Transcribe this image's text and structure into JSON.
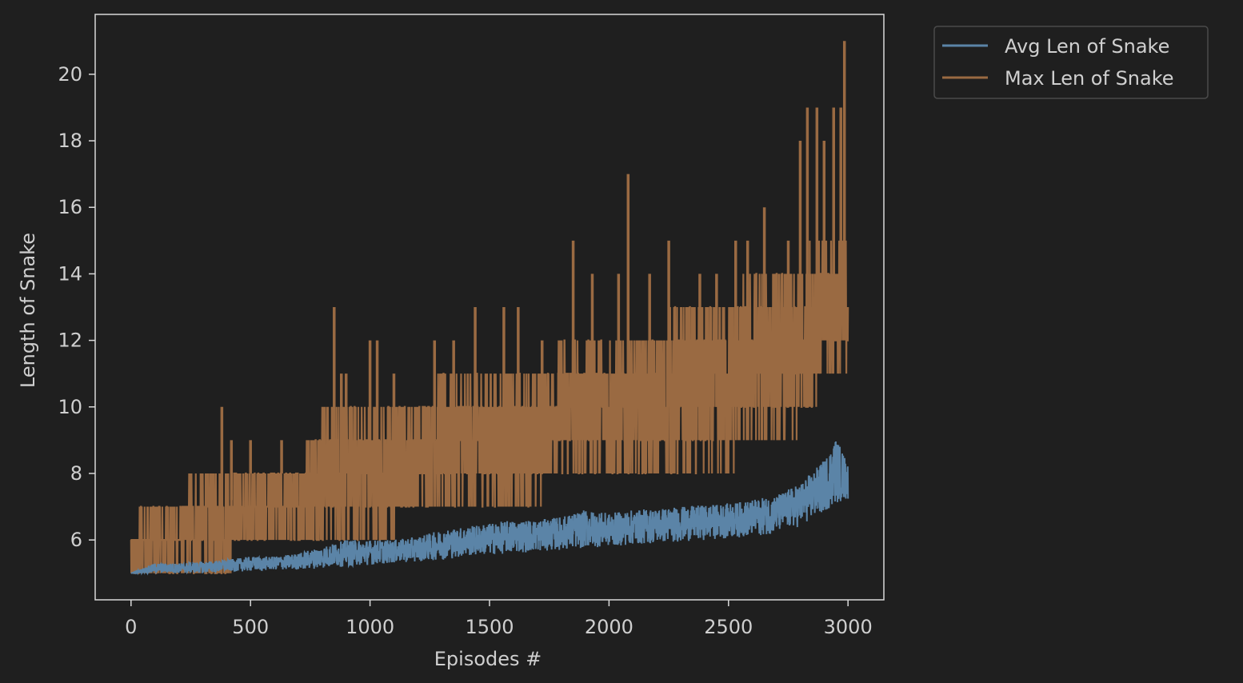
{
  "chart_data": {
    "type": "line",
    "title": "",
    "xlabel": "Episodes #",
    "ylabel": "Length of Snake",
    "xlim": [
      -150,
      3150
    ],
    "ylim": [
      4.2,
      21.8
    ],
    "xticks": [
      0,
      500,
      1000,
      1500,
      2000,
      2500,
      3000
    ],
    "xtick_labels": [
      "0",
      "500",
      "1000",
      "1500",
      "2000",
      "2500",
      "3000"
    ],
    "yticks": [
      6,
      8,
      10,
      12,
      14,
      16,
      18,
      20
    ],
    "ytick_labels": [
      "6",
      "8",
      "10",
      "12",
      "14",
      "16",
      "18",
      "20"
    ],
    "grid": false,
    "legend_position": "outside-top-right",
    "colors": {
      "background": "#1f1f1f",
      "axes_edge": "#d9d9d9",
      "text": "#cfcfcf",
      "series_avg": "#5b84a7",
      "series_max": "#9a6a42"
    },
    "x_range": [
      0,
      3000
    ],
    "series": [
      {
        "name": "Avg Len of Snake",
        "color": "#5b84a7",
        "band_points": [
          {
            "x": 0,
            "lower": 5.0,
            "upper": 5.0
          },
          {
            "x": 100,
            "lower": 5.0,
            "upper": 5.3
          },
          {
            "x": 200,
            "lower": 5.0,
            "upper": 5.3
          },
          {
            "x": 300,
            "lower": 5.0,
            "upper": 5.35
          },
          {
            "x": 400,
            "lower": 5.05,
            "upper": 5.4
          },
          {
            "x": 500,
            "lower": 5.05,
            "upper": 5.5
          },
          {
            "x": 600,
            "lower": 5.1,
            "upper": 5.5
          },
          {
            "x": 700,
            "lower": 5.1,
            "upper": 5.6
          },
          {
            "x": 800,
            "lower": 5.15,
            "upper": 5.8
          },
          {
            "x": 900,
            "lower": 5.2,
            "upper": 6.0
          },
          {
            "x": 1000,
            "lower": 5.25,
            "upper": 6.0
          },
          {
            "x": 1100,
            "lower": 5.3,
            "upper": 6.0
          },
          {
            "x": 1200,
            "lower": 5.35,
            "upper": 6.1
          },
          {
            "x": 1300,
            "lower": 5.4,
            "upper": 6.3
          },
          {
            "x": 1400,
            "lower": 5.5,
            "upper": 6.4
          },
          {
            "x": 1500,
            "lower": 5.55,
            "upper": 6.5
          },
          {
            "x": 1600,
            "lower": 5.6,
            "upper": 6.6
          },
          {
            "x": 1700,
            "lower": 5.65,
            "upper": 6.6
          },
          {
            "x": 1800,
            "lower": 5.7,
            "upper": 6.7
          },
          {
            "x": 1900,
            "lower": 5.75,
            "upper": 6.9
          },
          {
            "x": 2000,
            "lower": 5.8,
            "upper": 6.8
          },
          {
            "x": 2100,
            "lower": 5.85,
            "upper": 6.9
          },
          {
            "x": 2200,
            "lower": 5.9,
            "upper": 6.95
          },
          {
            "x": 2300,
            "lower": 5.95,
            "upper": 7.0
          },
          {
            "x": 2400,
            "lower": 6.0,
            "upper": 7.05
          },
          {
            "x": 2500,
            "lower": 6.05,
            "upper": 7.1
          },
          {
            "x": 2600,
            "lower": 6.1,
            "upper": 7.2
          },
          {
            "x": 2700,
            "lower": 6.2,
            "upper": 7.35
          },
          {
            "x": 2800,
            "lower": 6.4,
            "upper": 7.7
          },
          {
            "x": 2900,
            "lower": 6.8,
            "upper": 8.4
          },
          {
            "x": 2950,
            "lower": 7.1,
            "upper": 9.1
          },
          {
            "x": 3000,
            "lower": 7.2,
            "upper": 8.3
          }
        ]
      },
      {
        "name": "Max Len of Snake",
        "color": "#9a6a42",
        "band_points": [
          {
            "x": 0,
            "lower": 5,
            "upper": 6
          },
          {
            "x": 50,
            "lower": 5,
            "upper": 7
          },
          {
            "x": 100,
            "lower": 5,
            "upper": 7
          },
          {
            "x": 200,
            "lower": 5,
            "upper": 7
          },
          {
            "x": 250,
            "lower": 5,
            "upper": 8
          },
          {
            "x": 300,
            "lower": 5,
            "upper": 8
          },
          {
            "x": 400,
            "lower": 5,
            "upper": 8
          },
          {
            "x": 500,
            "lower": 6,
            "upper": 8
          },
          {
            "x": 600,
            "lower": 6,
            "upper": 8
          },
          {
            "x": 700,
            "lower": 6,
            "upper": 8
          },
          {
            "x": 750,
            "lower": 6,
            "upper": 9
          },
          {
            "x": 800,
            "lower": 6,
            "upper": 10
          },
          {
            "x": 900,
            "lower": 6,
            "upper": 10
          },
          {
            "x": 1000,
            "lower": 6,
            "upper": 10
          },
          {
            "x": 1100,
            "lower": 6,
            "upper": 10
          },
          {
            "x": 1200,
            "lower": 7,
            "upper": 10
          },
          {
            "x": 1300,
            "lower": 7,
            "upper": 11
          },
          {
            "x": 1400,
            "lower": 7,
            "upper": 11
          },
          {
            "x": 1500,
            "lower": 7,
            "upper": 11
          },
          {
            "x": 1600,
            "lower": 7,
            "upper": 11
          },
          {
            "x": 1700,
            "lower": 7,
            "upper": 11
          },
          {
            "x": 1750,
            "lower": 8,
            "upper": 11
          },
          {
            "x": 1800,
            "lower": 8,
            "upper": 12
          },
          {
            "x": 1900,
            "lower": 8,
            "upper": 12
          },
          {
            "x": 2000,
            "lower": 8,
            "upper": 12
          },
          {
            "x": 2100,
            "lower": 8,
            "upper": 12
          },
          {
            "x": 2200,
            "lower": 8,
            "upper": 12
          },
          {
            "x": 2300,
            "lower": 8,
            "upper": 13
          },
          {
            "x": 2400,
            "lower": 8,
            "upper": 13
          },
          {
            "x": 2500,
            "lower": 8,
            "upper": 13
          },
          {
            "x": 2600,
            "lower": 9,
            "upper": 14
          },
          {
            "x": 2700,
            "lower": 9,
            "upper": 14
          },
          {
            "x": 2800,
            "lower": 9,
            "upper": 14
          },
          {
            "x": 2850,
            "lower": 10,
            "upper": 15
          },
          {
            "x": 2900,
            "lower": 11,
            "upper": 15
          },
          {
            "x": 3000,
            "lower": 11,
            "upper": 15
          }
        ],
        "spikes": [
          {
            "x": 380,
            "y": 10
          },
          {
            "x": 420,
            "y": 9
          },
          {
            "x": 500,
            "y": 9
          },
          {
            "x": 630,
            "y": 9
          },
          {
            "x": 850,
            "y": 13
          },
          {
            "x": 880,
            "y": 11
          },
          {
            "x": 900,
            "y": 11
          },
          {
            "x": 1000,
            "y": 12
          },
          {
            "x": 1030,
            "y": 12
          },
          {
            "x": 1100,
            "y": 11
          },
          {
            "x": 1270,
            "y": 12
          },
          {
            "x": 1350,
            "y": 12
          },
          {
            "x": 1440,
            "y": 13
          },
          {
            "x": 1560,
            "y": 13
          },
          {
            "x": 1620,
            "y": 13
          },
          {
            "x": 1720,
            "y": 12
          },
          {
            "x": 1850,
            "y": 15
          },
          {
            "x": 1930,
            "y": 14
          },
          {
            "x": 2040,
            "y": 14
          },
          {
            "x": 2080,
            "y": 17
          },
          {
            "x": 2170,
            "y": 14
          },
          {
            "x": 2250,
            "y": 15
          },
          {
            "x": 2380,
            "y": 14
          },
          {
            "x": 2450,
            "y": 14
          },
          {
            "x": 2530,
            "y": 15
          },
          {
            "x": 2580,
            "y": 15
          },
          {
            "x": 2650,
            "y": 16
          },
          {
            "x": 2750,
            "y": 15
          },
          {
            "x": 2800,
            "y": 18
          },
          {
            "x": 2830,
            "y": 19
          },
          {
            "x": 2870,
            "y": 19
          },
          {
            "x": 2900,
            "y": 18
          },
          {
            "x": 2940,
            "y": 19
          },
          {
            "x": 2970,
            "y": 19
          },
          {
            "x": 2985,
            "y": 21
          }
        ]
      }
    ]
  }
}
